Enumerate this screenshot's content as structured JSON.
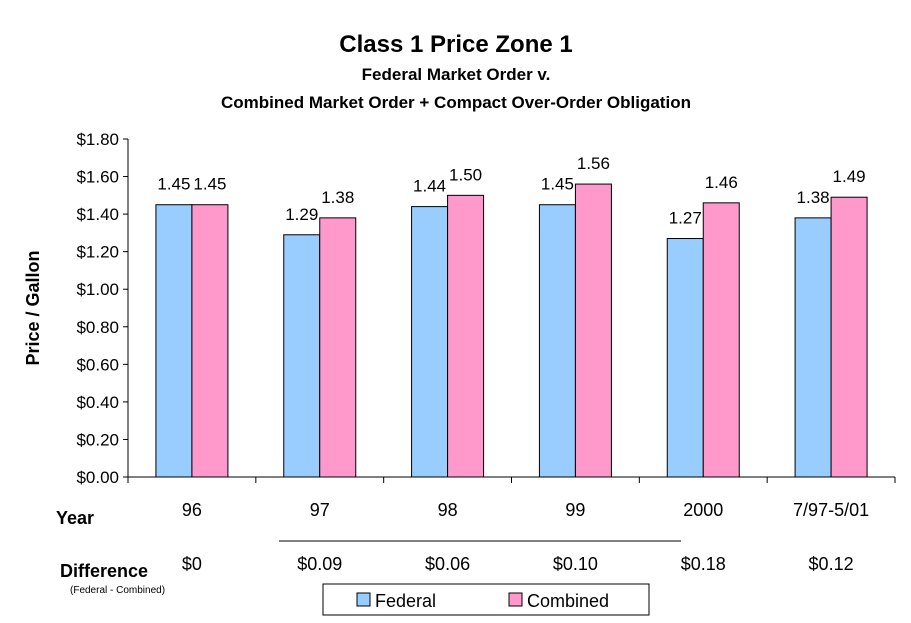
{
  "chart_data": {
    "type": "bar",
    "title": "Class 1 Price Zone 1",
    "subtitle_lines": [
      "Federal Market Order v.",
      "Combined Market Order + Compact Over-Order Obligation"
    ],
    "ylabel": "Price / Gallon",
    "xlabel": "Year",
    "ylim": [
      0,
      1.8
    ],
    "ytick_step": 0.2,
    "ytick_labels": [
      "$0.00",
      "$0.20",
      "$0.40",
      "$0.60",
      "$0.80",
      "$1.00",
      "$1.20",
      "$1.40",
      "$1.60",
      "$1.80"
    ],
    "categories": [
      "96",
      "97",
      "98",
      "99",
      "2000",
      "7/97-5/01"
    ],
    "series": [
      {
        "name": "Federal",
        "color": "#99CCFF",
        "values": [
          1.45,
          1.29,
          1.44,
          1.45,
          1.27,
          1.38
        ],
        "labels": [
          "1.45",
          "1.29",
          "1.44",
          "1.45",
          "1.27",
          "1.38"
        ]
      },
      {
        "name": "Combined",
        "color": "#FF99CC",
        "values": [
          1.45,
          1.38,
          1.5,
          1.56,
          1.46,
          1.49
        ],
        "labels": [
          "1.45",
          "1.38",
          "1.50",
          "1.56",
          "1.46",
          "1.49"
        ]
      }
    ],
    "difference": {
      "label": "Difference",
      "note": "(Federal - Combined)",
      "values": [
        "$0",
        "$0.09",
        "$0.06",
        "$0.10",
        "$0.18",
        "$0.12"
      ]
    },
    "legend_position": "bottom",
    "grid": false
  }
}
